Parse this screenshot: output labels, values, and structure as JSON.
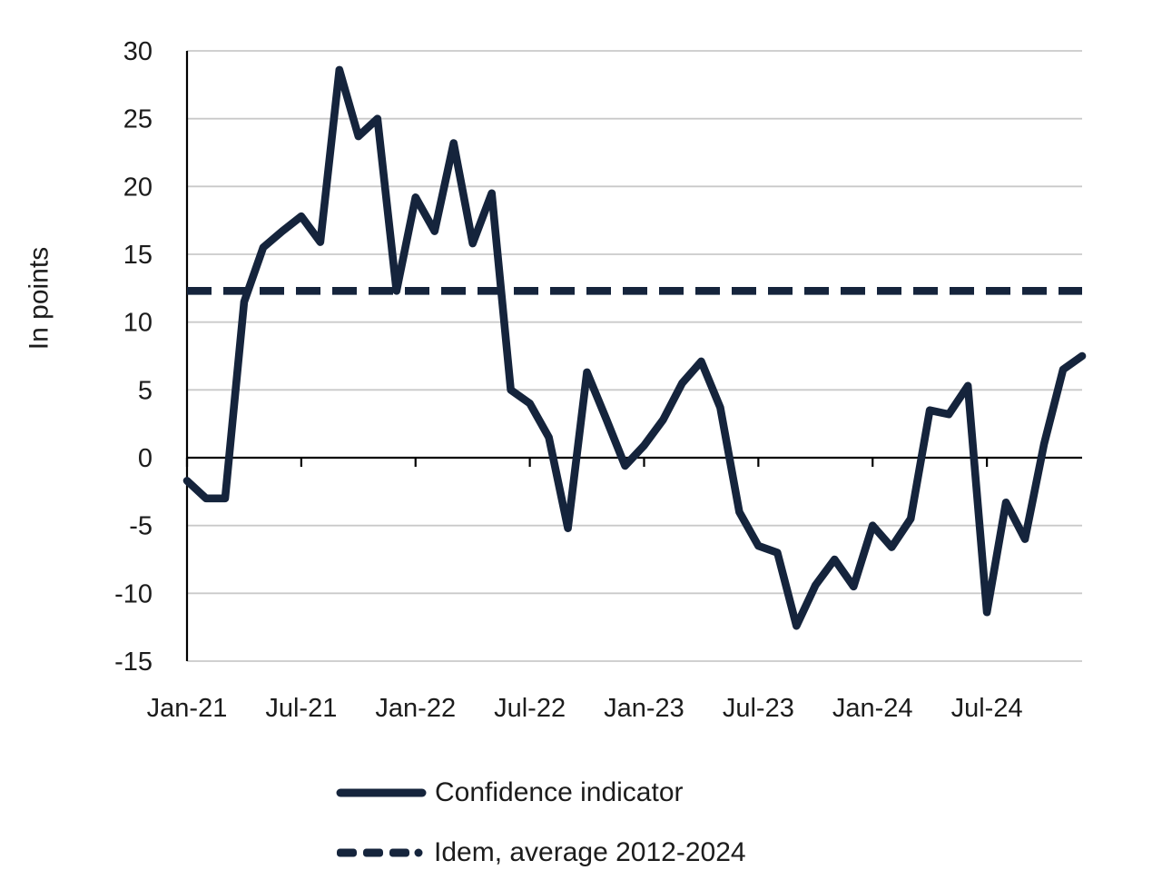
{
  "chart_data": {
    "type": "line",
    "title": "",
    "ylabel": "In points",
    "ylim": [
      -15,
      30
    ],
    "y_ticks": [
      30,
      25,
      20,
      15,
      10,
      5,
      0,
      -5,
      -10,
      -15
    ],
    "x_tick_labels": [
      "Jan-21",
      "Jul-21",
      "Jan-22",
      "Jul-22",
      "Jan-23",
      "Jul-23",
      "Jan-24",
      "Jul-24"
    ],
    "x_tick_every_n_months": 6,
    "grid": "horizontal",
    "legend_position": "bottom",
    "months": [
      "Jan-21",
      "Feb-21",
      "Mar-21",
      "Apr-21",
      "May-21",
      "Jun-21",
      "Jul-21",
      "Aug-21",
      "Sep-21",
      "Oct-21",
      "Nov-21",
      "Dec-21",
      "Jan-22",
      "Feb-22",
      "Mar-22",
      "Apr-22",
      "May-22",
      "Jun-22",
      "Jul-22",
      "Aug-22",
      "Sep-22",
      "Oct-22",
      "Nov-22",
      "Dec-22",
      "Jan-23",
      "Feb-23",
      "Mar-23",
      "Apr-23",
      "May-23",
      "Jun-23",
      "Jul-23",
      "Aug-23",
      "Sep-23",
      "Oct-23",
      "Nov-23",
      "Dec-23",
      "Jan-24",
      "Feb-24",
      "Mar-24",
      "Apr-24",
      "May-24",
      "Jun-24",
      "Jul-24",
      "Aug-24",
      "Sep-24",
      "Oct-24",
      "Nov-24",
      "Dec-24"
    ],
    "series": [
      {
        "name": "Confidence indicator",
        "style": "solid",
        "values": [
          -1.7,
          -3.0,
          -3.0,
          11.5,
          15.5,
          16.7,
          17.8,
          15.9,
          28.6,
          23.7,
          25.0,
          12.3,
          19.2,
          16.7,
          23.2,
          15.8,
          19.5,
          5.0,
          4.0,
          1.5,
          -5.2,
          6.3,
          2.9,
          -0.6,
          0.9,
          2.8,
          5.5,
          7.1,
          3.7,
          -4.0,
          -6.5,
          -7.0,
          -12.4,
          -9.4,
          -7.5,
          -9.5,
          -5.0,
          -6.6,
          -4.5,
          3.5,
          3.2,
          5.3,
          -11.4,
          -3.3,
          -6.0,
          1.0,
          6.5,
          7.5
        ]
      },
      {
        "name": "Idem, average 2012-2024",
        "style": "dashed",
        "value": 12.3
      }
    ],
    "colors": {
      "line": "#15243C",
      "grid": "#C9C9C9",
      "axis": "#000000",
      "text": "#1C1C1C"
    }
  },
  "legend": {
    "confidence_label": "Confidence indicator",
    "average_label": "Idem, average 2012-2024"
  }
}
